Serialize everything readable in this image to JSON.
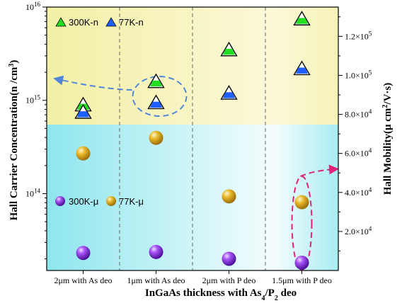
{
  "chart_data": {
    "type": "scatter",
    "categories": [
      "2μm with As deo",
      "1μm with  As deo",
      "2μm with  P deo",
      "1.5μm with P deo"
    ],
    "xlabel": {
      "text": "InGaAs thickness with As",
      "sub1": "4",
      "mid": "/P",
      "sub2": "2",
      "end": " deo"
    },
    "left_axis": {
      "label": "Hall Carrier Concentration(n /cm",
      "label_sup": "3",
      "label_end": ")",
      "scale": "log",
      "ylim": [
        15000000000000,
        10000000000000000
      ],
      "ticks": [
        {
          "value": 100000000000000,
          "base": "10",
          "exp": "14"
        },
        {
          "value": 1000000000000000,
          "base": "10",
          "exp": "15"
        },
        {
          "value": 10000000000000000,
          "base": "10",
          "exp": "16"
        }
      ]
    },
    "right_axis": {
      "label": "Hall Mobility(μ cm",
      "label_sup": "2",
      "label_end": "/V·s)",
      "scale": "linear",
      "ylim": [
        0,
        135000
      ],
      "ticks": [
        {
          "value": 20000,
          "mant": "2.0×10",
          "exp": "4"
        },
        {
          "value": 40000,
          "mant": "4.0×10",
          "exp": "4"
        },
        {
          "value": 60000,
          "mant": "6.0×10",
          "exp": "4"
        },
        {
          "value": 80000,
          "mant": "8.0×10",
          "exp": "4"
        },
        {
          "value": 100000,
          "mant": "1.0×10",
          "exp": "5"
        },
        {
          "value": 120000,
          "mant": "1.2×10",
          "exp": "5"
        }
      ]
    },
    "concentration_series": [
      {
        "name": "300K-n",
        "axis": "left",
        "color": "#22dd22",
        "marker": "triangle",
        "values": [
          900000000000000,
          1600000000000000,
          3500000000000000,
          7500000000000000
        ]
      },
      {
        "name": "77K-n",
        "axis": "left",
        "color": "#1f5fff",
        "marker": "triangle",
        "values": [
          750000000000000,
          950000000000000,
          1200000000000000,
          2200000000000000
        ]
      }
    ],
    "mobility_series": [
      {
        "name": "300K-μ",
        "axis": "right",
        "color": "#8a2be2",
        "marker": "sphere",
        "values": [
          9000,
          9500,
          6000,
          4000
        ]
      },
      {
        "name": "77K-μ",
        "axis": "right",
        "color": "#e8b82a",
        "marker": "sphere",
        "values": [
          60000,
          68000,
          38000,
          35000
        ]
      }
    ],
    "background": {
      "split_value": 550000000000000,
      "upper_color": "#f3f0a6",
      "lower_color": "#8ee6ee"
    }
  }
}
